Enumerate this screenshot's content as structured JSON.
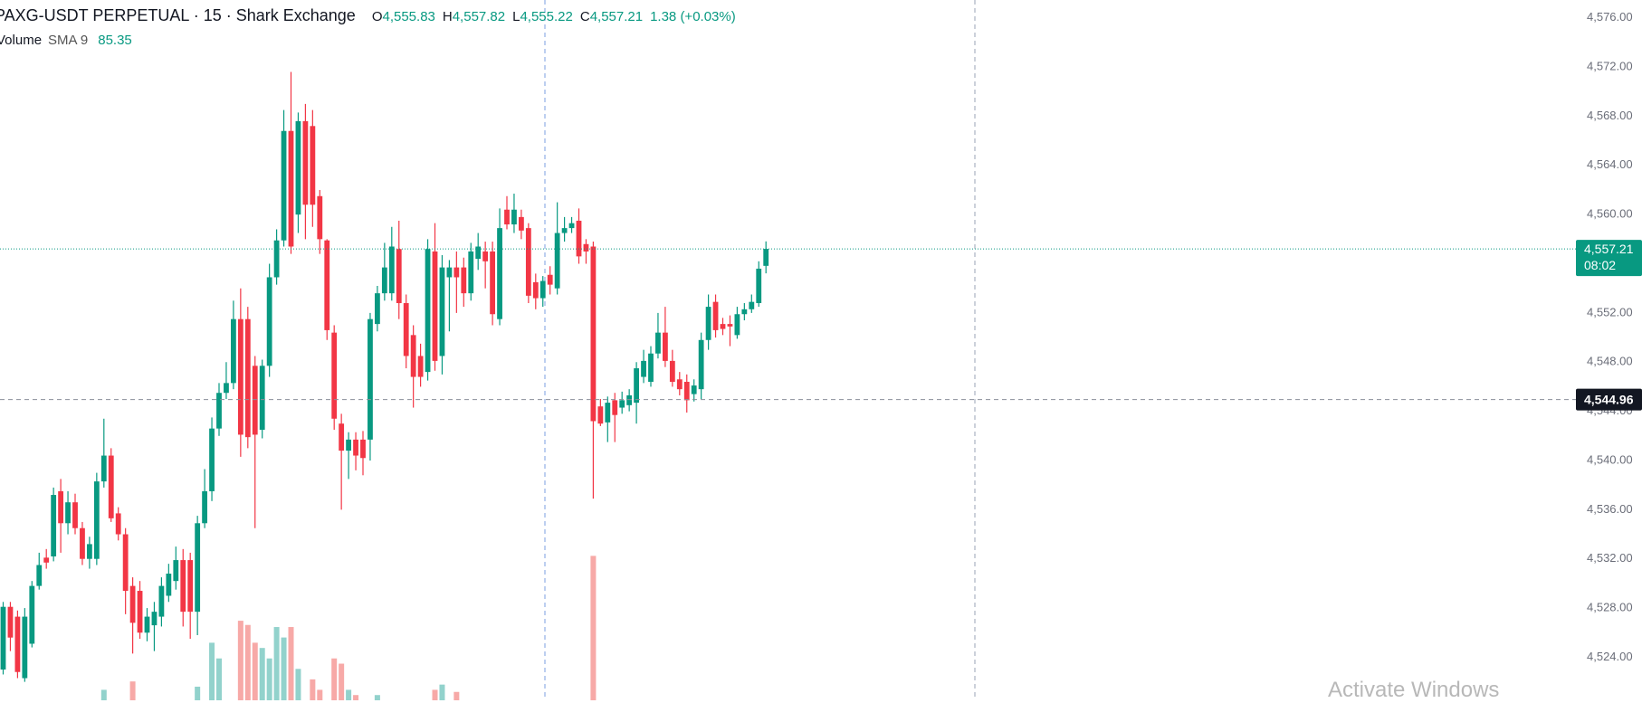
{
  "chart_data": {
    "type": "candlestick",
    "title": "PAXG-USDT PERPETUAL · 15 · Shark Exchange",
    "legend": {
      "open_key": "O",
      "open": {
        "value": 4555.83,
        "label": "4,555.83"
      },
      "high_key": "H",
      "high": {
        "value": 4557.82,
        "label": "4,557.82"
      },
      "low_key": "L",
      "low": {
        "value": 4555.22,
        "label": "4,555.22"
      },
      "close_key": "C",
      "close": {
        "value": 4557.21,
        "label": "4,557.21"
      },
      "change": "1.38 (+0.03%)"
    },
    "volume_legend": {
      "name": "Volume",
      "indicator": "SMA 9",
      "value": 85.35
    },
    "up_color": "#089981",
    "down_color": "#f23645",
    "volume_up_color": "#92d2cc",
    "volume_down_color": "#f7a9a7",
    "open": [
      4523.0,
      4528.1,
      4527.3,
      4522.3,
      4525.1,
      4529.8,
      4532.1,
      4532.2,
      4537.5,
      4534.9,
      4536.6,
      4534.5,
      4532.0,
      4532.0,
      4538.3,
      4540.4,
      4535.7,
      4534.0,
      4529.8,
      4529.4,
      4526.0,
      4526.6,
      4527.3,
      4529.0,
      4530.2,
      4531.9,
      4531.9,
      4527.7,
      4534.9,
      4537.5,
      4542.6,
      4545.5,
      4546.3,
      4551.5,
      4551.5,
      4547.7,
      4542.5,
      4547.7,
      4554.9,
      4557.9,
      4566.8,
      4560.0,
      4567.6,
      4567.2,
      4561.5,
      4557.9,
      4550.4,
      4543.0,
      4540.8,
      4541.7,
      4541.7,
      4541.7,
      4551.1,
      4553.6,
      4553.6,
      4557.2,
      4552.8,
      4550.2,
      4548.5,
      4547.2,
      4557.0,
      4548.5,
      4554.9,
      4555.7,
      4555.7,
      4553.6,
      4556.4,
      4557.0,
      4557.0,
      4551.5,
      4560.4,
      4559.2,
      4559.8,
      4558.9,
      4554.5,
      4553.2,
      4555.1,
      4554.0,
      4558.5,
      4558.9,
      4559.5,
      4557.6,
      4557.4,
      4544.4,
      4543.1,
      4544.9,
      4544.3,
      4544.5,
      4544.7,
      4546.8,
      4546.4,
      4548.7,
      4550.4,
      4548.1,
      4546.6,
      4546.4,
      4545.4,
      4545.8,
      4549.8,
      4552.9,
      4551.1,
      4551.1,
      4550.2,
      4551.9,
      4552.3,
      4552.8,
      4555.83
    ],
    "high": [
      4528.5,
      4528.5,
      4527.8,
      4528.0,
      4530.2,
      4532.5,
      4532.8,
      4537.8,
      4538.5,
      4537.5,
      4537.3,
      4535.0,
      4533.8,
      4539.0,
      4543.4,
      4541.0,
      4536.2,
      4534.5,
      4530.5,
      4530.2,
      4528.0,
      4528.5,
      4530.5,
      4531.6,
      4533.0,
      4532.8,
      4532.5,
      4535.5,
      4539.3,
      4543.5,
      4546.3,
      4548.0,
      4553.0,
      4554.0,
      4552.5,
      4548.5,
      4548.2,
      4556.0,
      4558.8,
      4568.5,
      4571.6,
      4568.3,
      4569.0,
      4568.5,
      4562.0,
      4558.0,
      4551.0,
      4543.8,
      4542.3,
      4542.3,
      4542.4,
      4552.0,
      4554.2,
      4557.7,
      4559.0,
      4559.5,
      4553.5,
      4551.0,
      4549.5,
      4558.0,
      4559.3,
      4556.7,
      4556.3,
      4557.0,
      4556.5,
      4557.7,
      4558.5,
      4557.8,
      4557.8,
      4560.5,
      4561.5,
      4561.7,
      4560.4,
      4559.3,
      4555.2,
      4555.0,
      4555.8,
      4561.0,
      4559.8,
      4559.8,
      4560.5,
      4558.0,
      4557.8,
      4545.0,
      4545.2,
      4545.5,
      4545.6,
      4545.8,
      4548.0,
      4549.0,
      4549.3,
      4552.0,
      4552.5,
      4549.0,
      4547.2,
      4547.0,
      4546.6,
      4550.4,
      4553.5,
      4553.5,
      4551.6,
      4551.8,
      4552.5,
      4552.8,
      4553.5,
      4556.2,
      4557.82
    ],
    "low": [
      4522.6,
      4524.5,
      4522.3,
      4522.0,
      4524.8,
      4529.5,
      4531.2,
      4531.8,
      4532.5,
      4534.0,
      4534.0,
      4531.5,
      4531.2,
      4531.5,
      4537.8,
      4535.0,
      4533.5,
      4527.5,
      4524.3,
      4525.5,
      4525.3,
      4524.5,
      4526.5,
      4528.5,
      4529.5,
      4526.5,
      4525.5,
      4525.8,
      4534.5,
      4536.7,
      4542.0,
      4545.0,
      4545.8,
      4540.3,
      4541.0,
      4534.5,
      4541.8,
      4546.8,
      4554.3,
      4557.4,
      4556.8,
      4558.5,
      4558.0,
      4559.0,
      4556.8,
      4549.8,
      4542.5,
      4536.0,
      4538.5,
      4539.2,
      4538.8,
      4540.0,
      4550.5,
      4553.0,
      4553.0,
      4551.5,
      4547.5,
      4544.3,
      4546.0,
      4546.5,
      4547.3,
      4547.0,
      4550.5,
      4552.0,
      4552.5,
      4553.0,
      4555.5,
      4554.0,
      4551.0,
      4551.0,
      4558.8,
      4558.5,
      4558.0,
      4552.8,
      4552.3,
      4552.5,
      4553.5,
      4553.5,
      4557.8,
      4558.5,
      4556.0,
      4556.0,
      4536.9,
      4542.8,
      4541.5,
      4541.5,
      4543.8,
      4544.0,
      4543.0,
      4546.3,
      4546.0,
      4548.3,
      4547.6,
      4546.0,
      4545.3,
      4543.9,
      4544.8,
      4545.0,
      4549.0,
      4550.0,
      4550.2,
      4549.3,
      4549.9,
      4551.4,
      4552.0,
      4552.5,
      4555.22
    ],
    "close": [
      4528.1,
      4525.6,
      4522.8,
      4527.3,
      4529.8,
      4531.5,
      4531.7,
      4537.2,
      4534.9,
      4536.6,
      4534.5,
      4532.0,
      4533.2,
      4538.3,
      4540.4,
      4535.3,
      4534.0,
      4529.4,
      4526.8,
      4526.0,
      4527.3,
      4527.7,
      4529.8,
      4530.8,
      4531.9,
      4527.7,
      4527.7,
      4534.9,
      4537.5,
      4542.6,
      4545.5,
      4546.3,
      4551.5,
      4542.1,
      4541.9,
      4542.1,
      4547.7,
      4554.9,
      4557.9,
      4566.8,
      4557.4,
      4567.6,
      4560.8,
      4560.8,
      4558.0,
      4550.6,
      4543.4,
      4540.8,
      4541.7,
      4540.4,
      4540.2,
      4551.5,
      4553.6,
      4555.7,
      4557.4,
      4552.8,
      4548.5,
      4546.8,
      4546.8,
      4557.2,
      4548.1,
      4555.7,
      4555.7,
      4554.9,
      4553.6,
      4557.0,
      4557.4,
      4556.2,
      4551.9,
      4558.9,
      4559.2,
      4560.4,
      4558.7,
      4553.4,
      4553.2,
      4554.6,
      4554.3,
      4558.5,
      4558.9,
      4559.3,
      4556.6,
      4557.0,
      4543.2,
      4543.0,
      4544.7,
      4543.7,
      4544.9,
      4545.3,
      4547.5,
      4548.1,
      4548.7,
      4550.4,
      4548.1,
      4546.4,
      4545.8,
      4544.9,
      4546.1,
      4549.8,
      4552.5,
      4550.6,
      4550.7,
      4550.9,
      4551.9,
      4552.3,
      4552.9,
      4555.6,
      4557.21
    ],
    "volume": [
      0,
      0,
      0,
      0,
      0,
      0,
      0,
      0,
      0,
      0,
      0,
      0,
      0,
      0,
      10,
      0,
      0,
      0,
      18,
      0,
      0,
      0,
      0,
      0,
      0,
      0,
      0,
      13,
      0,
      55,
      40,
      0,
      0,
      76,
      72,
      55,
      50,
      40,
      70,
      60,
      70,
      30,
      0,
      20,
      10,
      0,
      40,
      35,
      10,
      5,
      0,
      0,
      5,
      0,
      0,
      0,
      0,
      0,
      0,
      0,
      10,
      15,
      0,
      8,
      0,
      0,
      0,
      0,
      0,
      0,
      0,
      0,
      0,
      0,
      0,
      0,
      0,
      0,
      0,
      0,
      0,
      0,
      138,
      0,
      0,
      0,
      0,
      0,
      0,
      0,
      0,
      0,
      0,
      0,
      0,
      0,
      0,
      0,
      0,
      0,
      0,
      0,
      0,
      0,
      0,
      0,
      0
    ],
    "vlim": [
      0,
      300
    ],
    "ylim": [
      4520.5,
      4577.45
    ],
    "yticks": [
      {
        "value": 4524,
        "label": "4,524.00"
      },
      {
        "value": 4528,
        "label": "4,528.00"
      },
      {
        "value": 4532,
        "label": "4,532.00"
      },
      {
        "value": 4536,
        "label": "4,536.00"
      },
      {
        "value": 4540,
        "label": "4,540.00"
      },
      {
        "value": 4544,
        "label": "4,544.00"
      },
      {
        "value": 4548,
        "label": "4,548.00"
      },
      {
        "value": 4552,
        "label": "4,552.00"
      },
      {
        "value": 4556,
        "label": "4,556.00"
      },
      {
        "value": 4560,
        "label": "4,560.00"
      },
      {
        "value": 4564,
        "label": "4,564.00"
      },
      {
        "value": 4568,
        "label": "4,568.00"
      },
      {
        "value": 4572,
        "label": "4,572.00"
      },
      {
        "value": 4576,
        "label": "4,576.00"
      }
    ],
    "grid": false,
    "last_price": {
      "value": 4557.21,
      "label": "4,557.21"
    },
    "countdown": "08:02",
    "crosshair_price": {
      "value": 4544.96,
      "label": "4,544.96"
    }
  },
  "watermark": "Activate Windows"
}
